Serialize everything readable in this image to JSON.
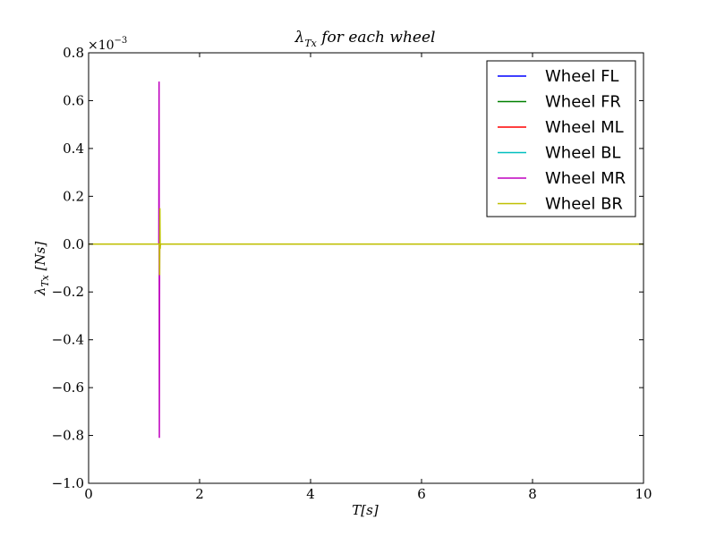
{
  "chart_data": {
    "type": "line",
    "title": "λ_Tx for each wheel",
    "title_parts": {
      "symbol": "λ",
      "sub": "Tx",
      "rest": " for each wheel"
    },
    "xlabel": "T[s]",
    "ylabel": "λ_Tx [Ns]",
    "ylabel_parts": {
      "symbol": "λ",
      "sub": "Tx",
      "rest": " [Ns]"
    },
    "y_multiplier": "×10",
    "y_multiplier_exp": "−3",
    "xlim": [
      0,
      10
    ],
    "ylim": [
      -1.0,
      0.8
    ],
    "xticks": [
      0,
      2,
      4,
      6,
      8,
      10
    ],
    "xtick_labels": [
      "0",
      "2",
      "4",
      "6",
      "8",
      "10"
    ],
    "yticks": [
      -1.0,
      -0.8,
      -0.6,
      -0.4,
      -0.2,
      0.0,
      0.2,
      0.4,
      0.6,
      0.8
    ],
    "ytick_labels": [
      "−1.0",
      "−0.8",
      "−0.6",
      "−0.4",
      "−0.2",
      "0.0",
      "0.2",
      "0.4",
      "0.6",
      "0.8"
    ],
    "grid": false,
    "legend_position": "top-right",
    "series": [
      {
        "name": "Wheel FL",
        "color": "#0000ff",
        "x": [
          0,
          1.27,
          1.275,
          1.28,
          1.285,
          1.29,
          10
        ],
        "y": [
          0,
          0,
          0.005,
          -0.005,
          0.002,
          0,
          0
        ]
      },
      {
        "name": "Wheel FR",
        "color": "#008000",
        "x": [
          0,
          1.27,
          1.275,
          1.28,
          1.285,
          1.29,
          10
        ],
        "y": [
          0,
          0,
          0.01,
          -0.01,
          0.004,
          0,
          0
        ]
      },
      {
        "name": "Wheel ML",
        "color": "#ff0000",
        "x": [
          0,
          1.27,
          1.275,
          1.28,
          1.285,
          1.29,
          10
        ],
        "y": [
          0,
          0,
          0.008,
          -0.008,
          0.003,
          0,
          0
        ]
      },
      {
        "name": "Wheel BL",
        "color": "#00bfbf",
        "x": [
          0,
          1.27,
          1.275,
          1.28,
          1.285,
          1.29,
          10
        ],
        "y": [
          0,
          0,
          0.006,
          -0.006,
          0.002,
          0,
          0
        ]
      },
      {
        "name": "Wheel MR",
        "color": "#bf00bf",
        "x": [
          0,
          1.265,
          1.27,
          1.275,
          1.28,
          1.285,
          10
        ],
        "y": [
          0,
          0,
          0.68,
          -0.81,
          0.0,
          0,
          0
        ]
      },
      {
        "name": "Wheel BR",
        "color": "#bfbf00",
        "x": [
          0,
          1.275,
          1.28,
          1.285,
          1.29,
          1.295,
          10
        ],
        "y": [
          0,
          0,
          -0.13,
          0.15,
          -0.02,
          0,
          0
        ]
      }
    ]
  }
}
